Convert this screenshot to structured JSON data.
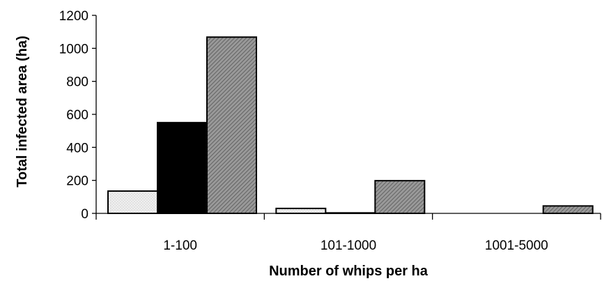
{
  "chart_data": {
    "type": "bar",
    "title": "",
    "xlabel": "Number of whips per ha",
    "ylabel": "Total infected area (ha)",
    "categories": [
      "1-100",
      "101-1000",
      "1001-5000"
    ],
    "series": [
      {
        "values": [
          135,
          30,
          0
        ],
        "fill": "#ebebeb",
        "pattern": "dots"
      },
      {
        "values": [
          550,
          3,
          0
        ],
        "fill": "#000000",
        "pattern": "solid"
      },
      {
        "values": [
          1068,
          198,
          45
        ],
        "fill": "#8c8c8c",
        "pattern": "diagonal-hatch"
      }
    ],
    "ylim": [
      0,
      1200
    ],
    "yticks": [
      0,
      200,
      400,
      600,
      800,
      1000,
      1200
    ],
    "grid": false,
    "legend": "none"
  }
}
